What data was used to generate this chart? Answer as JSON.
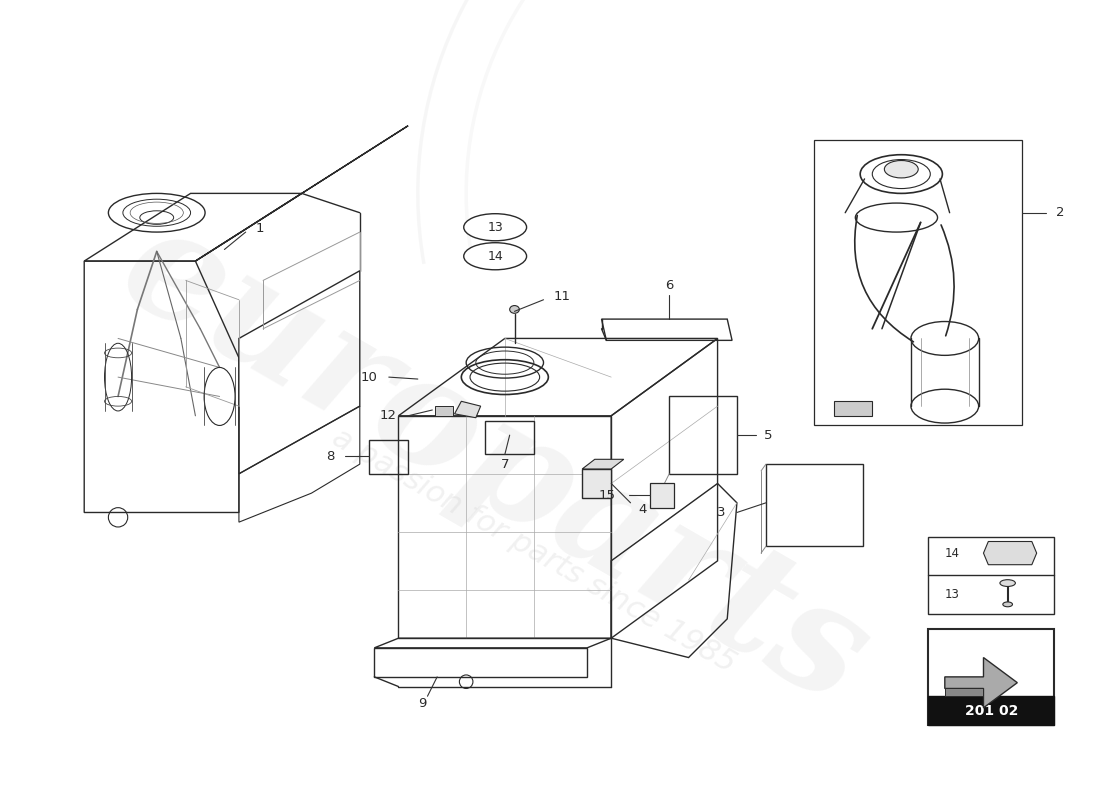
{
  "bg_color": "#ffffff",
  "line_color": "#2a2a2a",
  "lw_main": 1.0,
  "lw_thin": 0.6,
  "watermark_text": "europarts",
  "watermark_sub": "a passion for parts since 1985",
  "part_code": "201 02",
  "label_fontsize": 9.5,
  "callout_fontsize": 9.0
}
